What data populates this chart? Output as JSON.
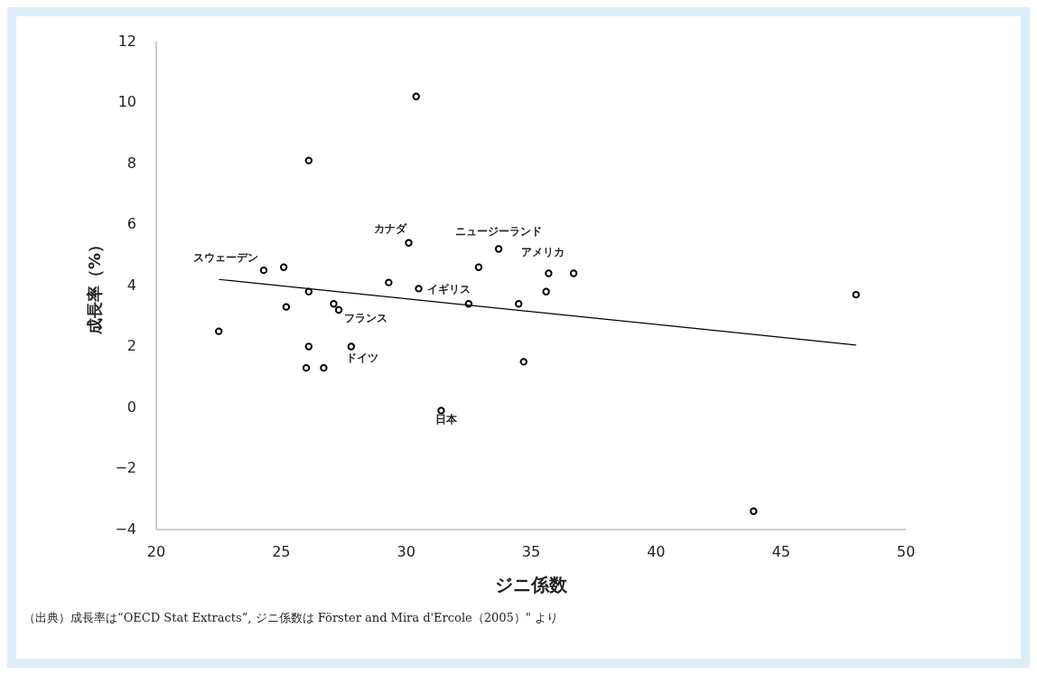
{
  "chart_data": {
    "type": "scatter",
    "xlabel": "ジニ係数",
    "ylabel": "成長率（%）",
    "marker": "circle",
    "grid": false,
    "xlim": [
      20,
      50
    ],
    "xticks": [
      20,
      25,
      30,
      35,
      40,
      45,
      50
    ],
    "ylim": [
      -4,
      12
    ],
    "yticks": [
      -4,
      -2,
      0,
      2,
      4,
      6,
      8,
      10,
      12
    ],
    "series": [
      {
        "color": "#000000",
        "x": [
          22.5,
          24.3,
          25.1,
          26.1,
          25.2,
          27.1,
          27.3,
          26.1,
          27.8,
          26.0,
          26.7,
          29.3,
          30.1,
          26.1,
          30.4,
          30.5,
          32.9,
          33.7,
          32.5,
          34.5,
          35.7,
          36.7,
          35.6,
          34.7,
          31.4,
          48.0,
          43.9
        ],
        "values": [
          2.5,
          4.5,
          4.6,
          3.8,
          3.3,
          3.4,
          3.2,
          2.0,
          2.0,
          1.3,
          1.3,
          4.1,
          5.4,
          8.1,
          10.2,
          3.9,
          4.6,
          5.2,
          3.4,
          3.4,
          4.4,
          4.4,
          3.8,
          1.5,
          -0.1,
          3.7,
          -3.4
        ]
      },
      {
        "type": "line",
        "color": "#000000",
        "marker": "none",
        "x": [
          22.5,
          48.0
        ],
        "values": [
          4.2,
          2.05
        ]
      }
    ],
    "annotations": [
      {
        "text": "スウェーデン",
        "x": 24.3,
        "y": 4.5
      },
      {
        "text": "カナダ",
        "x": 30.1,
        "y": 5.4
      },
      {
        "text": "ニュージーランド",
        "x": 33.7,
        "y": 5.2
      },
      {
        "text": "アメリカ",
        "x": 35.7,
        "y": 4.4
      },
      {
        "text": "イギリス",
        "x": 32.5,
        "y": 3.4
      },
      {
        "text": "フランス",
        "x": 27.3,
        "y": 3.2
      },
      {
        "text": "ドイツ",
        "x": 27.8,
        "y": 2.0
      },
      {
        "text": "日本",
        "x": 31.4,
        "y": -0.1
      },
      "（出典）成長率は“OECD Stat Extracts”, ジニ係数は Förster and Mira d'Ercole（2005）\" より"
    ]
  }
}
